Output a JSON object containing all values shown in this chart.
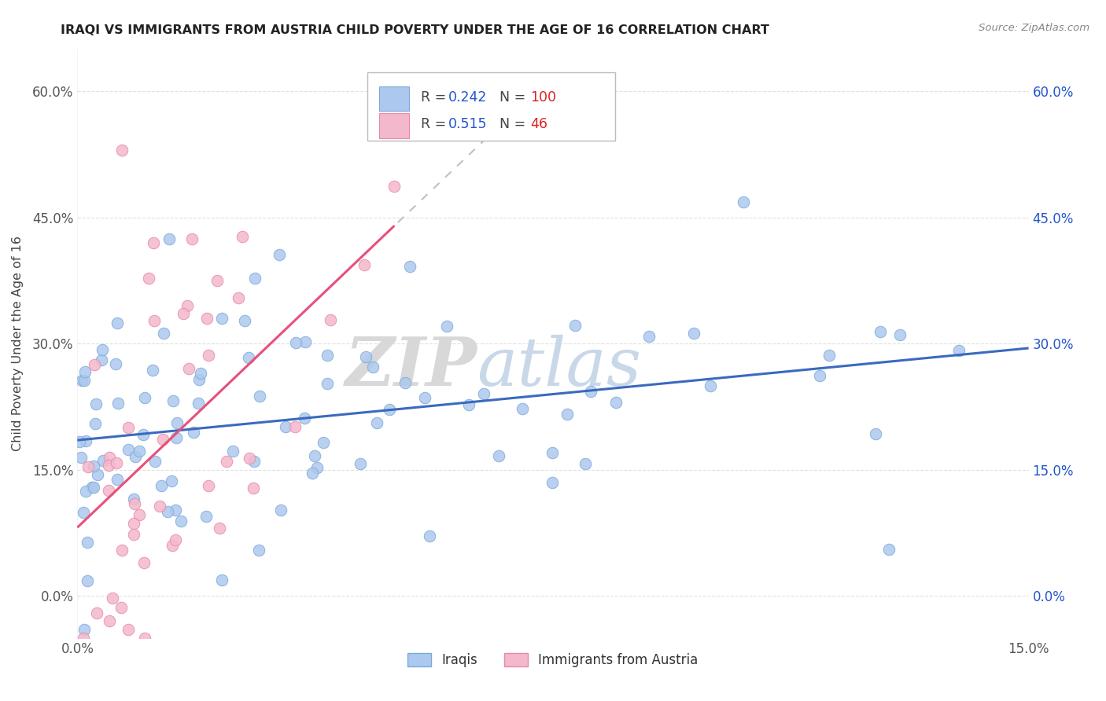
{
  "title": "IRAQI VS IMMIGRANTS FROM AUSTRIA CHILD POVERTY UNDER THE AGE OF 16 CORRELATION CHART",
  "source": "Source: ZipAtlas.com",
  "ylabel": "Child Poverty Under the Age of 16",
  "xlim": [
    0.0,
    0.15
  ],
  "ylim": [
    -0.05,
    0.65
  ],
  "yticks": [
    0.0,
    0.15,
    0.3,
    0.45,
    0.6
  ],
  "ytick_labels": [
    "0.0%",
    "15.0%",
    "30.0%",
    "45.0%",
    "60.0%"
  ],
  "xticks": [
    0.0,
    0.15
  ],
  "xtick_labels": [
    "0.0%",
    "15.0%"
  ],
  "r_iraqi": 0.242,
  "n_iraqi": 100,
  "r_austria": 0.515,
  "n_austria": 46,
  "blue_color": "#adc8ee",
  "blue_edge": "#7aaad8",
  "pink_color": "#f4b8cc",
  "pink_edge": "#e888a8",
  "blue_line_color": "#3a6abf",
  "pink_line_color": "#e8507a",
  "watermark_zip": "ZIP",
  "watermark_atlas": "atlas",
  "background_color": "#ffffff",
  "grid_color": "#e0e0e0",
  "legend_text_color": "#2255cc",
  "legend_n_color": "#cc2222",
  "legend_label_color": "#444444"
}
